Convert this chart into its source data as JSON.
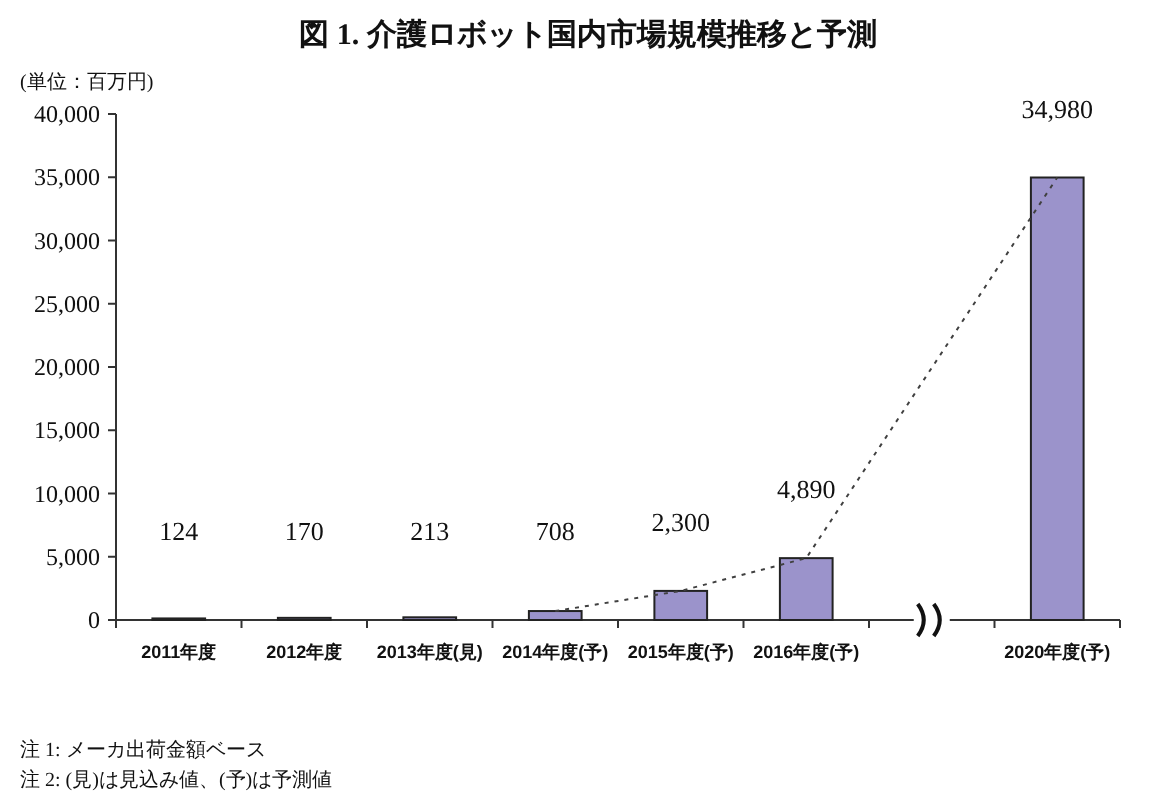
{
  "chart_data": {
    "type": "bar",
    "title": "図 1. 介護ロボット国内市場規模推移と予測",
    "ylabel": "(単位：百万円)",
    "categories": [
      "2011年度",
      "2012年度",
      "2013年度(見)",
      "2014年度(予)",
      "2015年度(予)",
      "2016年度(予)",
      null,
      "2020年度(予)"
    ],
    "series": [
      {
        "color": "#9b93cb",
        "values": [
          124,
          170,
          213,
          708,
          2300,
          4890,
          null,
          34980
        ],
        "value_labels": [
          "124",
          "170",
          "213",
          "708",
          "2,300",
          "4,890",
          null,
          "34,980"
        ]
      },
      {
        "type": "line",
        "color": "#404040",
        "line_style": "dotted",
        "values": [
          null,
          null,
          null,
          708,
          2300,
          4890,
          null,
          34980
        ]
      }
    ],
    "ylim": [
      0,
      40000
    ],
    "yticks": [
      {
        "value": 0,
        "label": "0"
      },
      {
        "value": 5000,
        "label": "5,000"
      },
      {
        "value": 10000,
        "label": "10,000"
      },
      {
        "value": 15000,
        "label": "15,000"
      },
      {
        "value": 20000,
        "label": "20,000"
      },
      {
        "value": 25000,
        "label": "25,000"
      },
      {
        "value": 30000,
        "label": "30,000"
      },
      {
        "value": 35000,
        "label": "35,000"
      },
      {
        "value": 40000,
        "label": "40,000"
      }
    ],
    "annotations": [
      "注 1: メーカ出荷金額ベース",
      "注 2: (見)は見込み値、(予)は予測値"
    ]
  }
}
